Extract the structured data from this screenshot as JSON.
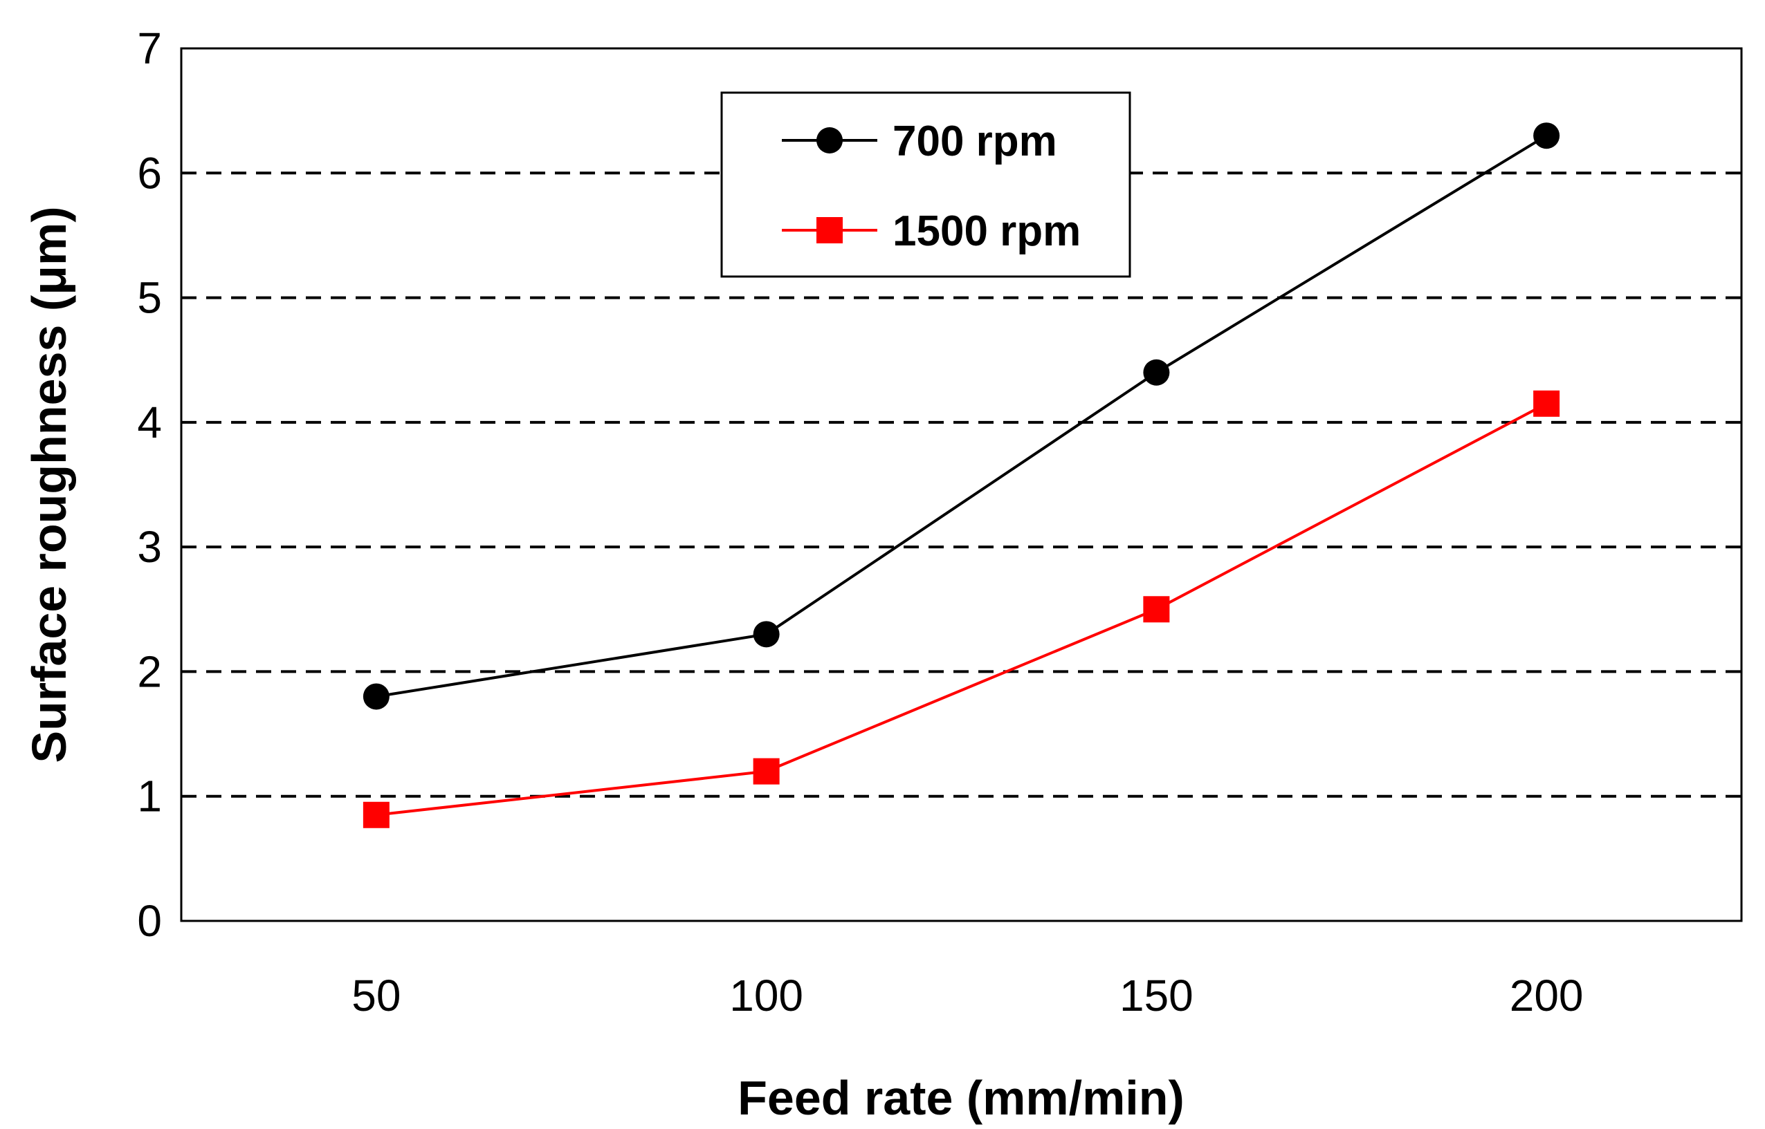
{
  "chart_data": {
    "type": "line",
    "title": "",
    "xlabel": "Feed rate (mm/min)",
    "ylabel": "Surface roughness (μm)",
    "x": [
      50,
      100,
      150,
      200
    ],
    "x_tick_labels": [
      "50",
      "100",
      "150",
      "200"
    ],
    "xlim": [
      25,
      225
    ],
    "ylim": [
      0,
      7
    ],
    "y_ticks": [
      0,
      1,
      2,
      3,
      4,
      5,
      6,
      7
    ],
    "y_tick_labels": [
      "0",
      "1",
      "2",
      "3",
      "4",
      "5",
      "6",
      "7"
    ],
    "grid": "horizontal dashed",
    "legend_position": "top-center",
    "series": [
      {
        "name": "700 rpm",
        "color": "#000000",
        "marker": "circle",
        "values": [
          1.8,
          2.3,
          4.4,
          6.3
        ]
      },
      {
        "name": "1500 rpm",
        "color": "#ff0000",
        "marker": "square",
        "values": [
          0.85,
          1.2,
          2.5,
          4.15
        ]
      }
    ]
  }
}
